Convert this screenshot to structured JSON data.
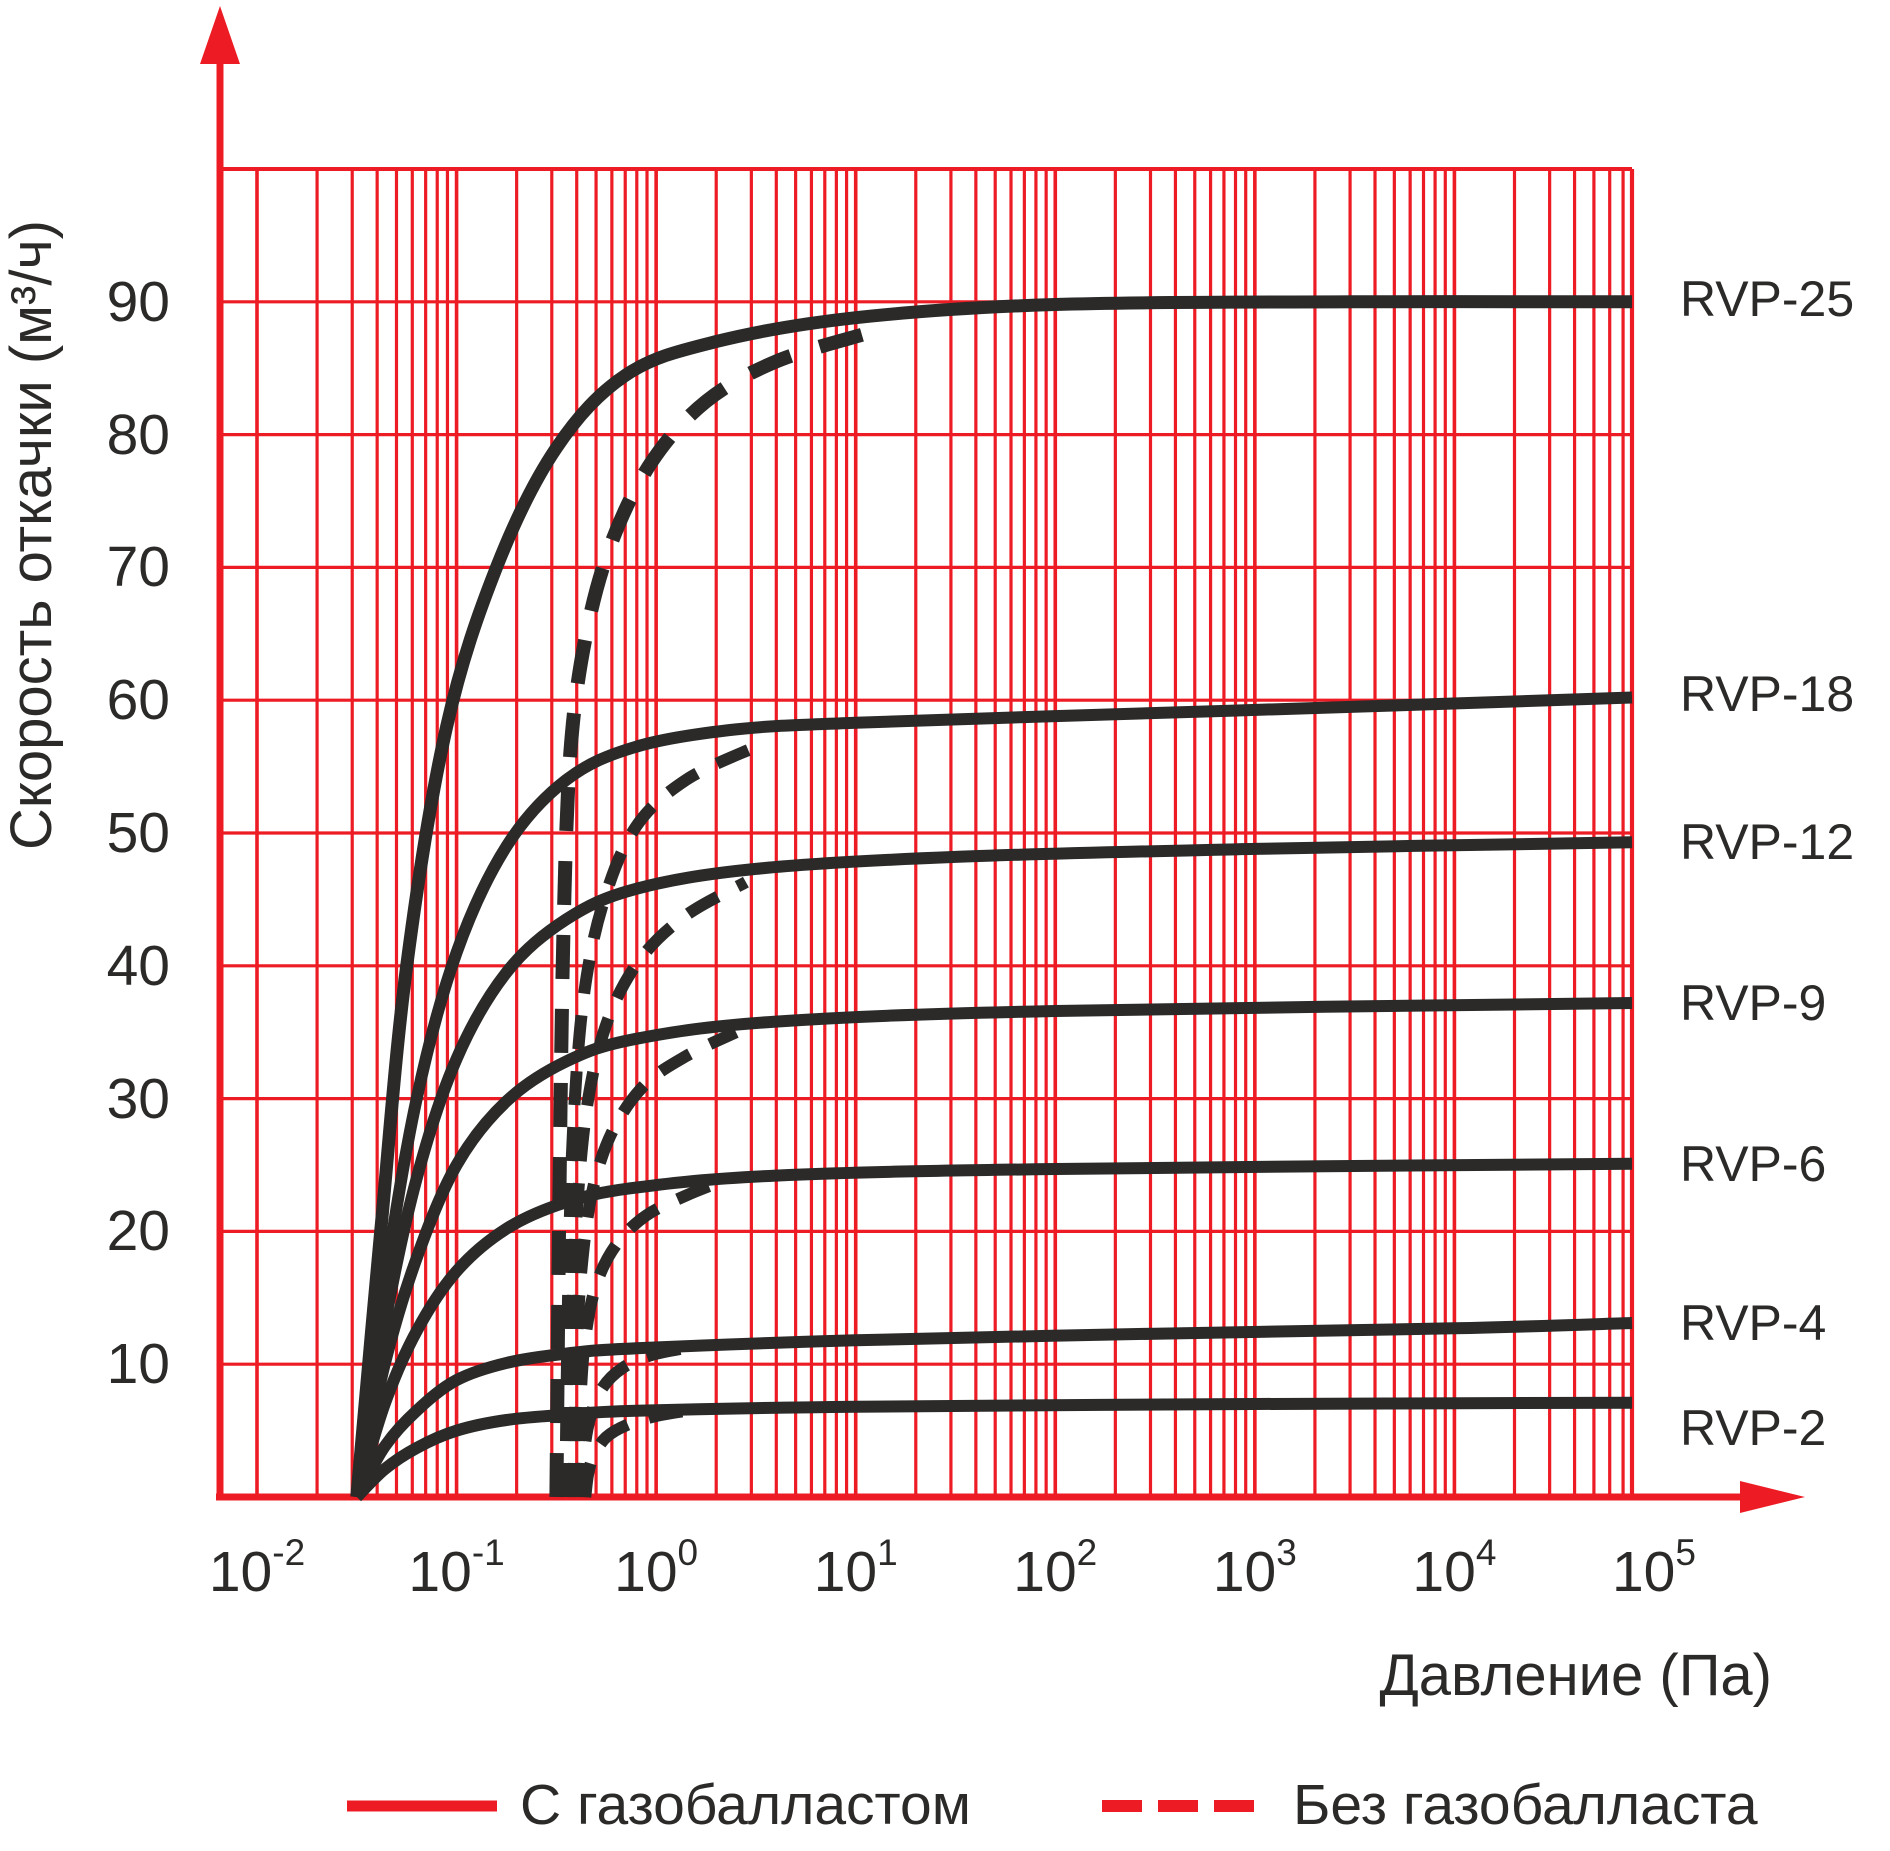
{
  "chart_data": {
    "type": "line",
    "title": "",
    "xlabel": "Давление (Па)",
    "ylabel": "Скорость откачки (м³/ч)",
    "x_scale": "log10",
    "x_ticks": [
      {
        "base": "10",
        "exp": "-2"
      },
      {
        "base": "10",
        "exp": "-1"
      },
      {
        "base": "10",
        "exp": "0"
      },
      {
        "base": "10",
        "exp": "1"
      },
      {
        "base": "10",
        "exp": "2"
      },
      {
        "base": "10",
        "exp": "3"
      },
      {
        "base": "10",
        "exp": "4"
      },
      {
        "base": "10",
        "exp": "5"
      }
    ],
    "y_ticks": [
      10,
      20,
      30,
      40,
      50,
      60,
      70,
      80,
      90
    ],
    "ylim": [
      0,
      100
    ],
    "grid": true,
    "legend_position": "bottom",
    "colors": {
      "grid": "#ed1c24",
      "axis": "#ed1c24",
      "curve": "#2b2a29",
      "text": "#2b2a29"
    },
    "legend": [
      {
        "label": "С газобалластом",
        "style": "solid"
      },
      {
        "label": "Без газобалласта",
        "style": "dashed"
      }
    ],
    "series": [
      {
        "label": "RVP-25",
        "plateau_m3h": 90,
        "label_v": 90.2,
        "solid": [
          [
            -1.5,
            0
          ],
          [
            -1.38,
            20
          ],
          [
            -1.25,
            40
          ],
          [
            -1.05,
            58
          ],
          [
            -0.8,
            70
          ],
          [
            -0.5,
            79
          ],
          [
            -0.15,
            84.5
          ],
          [
            0.3,
            87
          ],
          [
            1,
            88.8
          ],
          [
            2,
            89.8
          ],
          [
            3.5,
            90
          ],
          [
            4.89,
            90
          ]
        ],
        "dashed": [
          [
            -0.5,
            0
          ],
          [
            -0.485,
            22
          ],
          [
            -0.465,
            42
          ],
          [
            -0.43,
            56
          ],
          [
            -0.35,
            65
          ],
          [
            -0.22,
            72
          ],
          [
            -0.02,
            78
          ],
          [
            0.25,
            82.5
          ],
          [
            0.6,
            85.5
          ],
          [
            1.05,
            87.6
          ]
        ]
      },
      {
        "label": "RVP-18",
        "plateau_m3h": 60,
        "label_v": 60.5,
        "solid": [
          [
            -1.5,
            0
          ],
          [
            -1.36,
            16
          ],
          [
            -1.2,
            30
          ],
          [
            -1.0,
            41
          ],
          [
            -0.75,
            49
          ],
          [
            -0.45,
            54
          ],
          [
            -0.1,
            56.5
          ],
          [
            0.4,
            57.8
          ],
          [
            1,
            58.3
          ],
          [
            2,
            58.8
          ],
          [
            3.5,
            59.5
          ],
          [
            4.89,
            60.2
          ]
        ],
        "dashed": [
          [
            -0.455,
            0
          ],
          [
            -0.44,
            16
          ],
          [
            -0.415,
            28
          ],
          [
            -0.36,
            38
          ],
          [
            -0.26,
            45
          ],
          [
            -0.1,
            50.5
          ],
          [
            0.15,
            54
          ],
          [
            0.5,
            56.5
          ]
        ]
      },
      {
        "label": "RVP-12",
        "plateau_m3h": 49,
        "label_v": 49.3,
        "solid": [
          [
            -1.5,
            0
          ],
          [
            -1.36,
            13
          ],
          [
            -1.2,
            24
          ],
          [
            -1.0,
            33
          ],
          [
            -0.75,
            39.5
          ],
          [
            -0.45,
            43.5
          ],
          [
            -0.1,
            45.8
          ],
          [
            0.5,
            47.3
          ],
          [
            1.5,
            48.2
          ],
          [
            3,
            48.8
          ],
          [
            4.89,
            49.3
          ]
        ],
        "dashed": [
          [
            -0.435,
            0
          ],
          [
            -0.42,
            13
          ],
          [
            -0.395,
            22
          ],
          [
            -0.34,
            30
          ],
          [
            -0.24,
            36
          ],
          [
            -0.08,
            40.5
          ],
          [
            0.15,
            43.8
          ],
          [
            0.45,
            46.3
          ]
        ]
      },
      {
        "label": "RVP-9",
        "plateau_m3h": 37,
        "label_v": 37.2,
        "solid": [
          [
            -1.5,
            0
          ],
          [
            -1.36,
            10
          ],
          [
            -1.2,
            18
          ],
          [
            -1.0,
            25
          ],
          [
            -0.75,
            29.8
          ],
          [
            -0.45,
            32.8
          ],
          [
            -0.1,
            34.5
          ],
          [
            0.6,
            35.8
          ],
          [
            2,
            36.6
          ],
          [
            4.89,
            37.2
          ]
        ],
        "dashed": [
          [
            -0.415,
            0
          ],
          [
            -0.4,
            10
          ],
          [
            -0.375,
            17
          ],
          [
            -0.32,
            23
          ],
          [
            -0.22,
            27.5
          ],
          [
            -0.06,
            31
          ],
          [
            0.15,
            33.2
          ],
          [
            0.4,
            35
          ]
        ]
      },
      {
        "label": "RVP-6",
        "plateau_m3h": 25,
        "label_v": 25.1,
        "solid": [
          [
            -1.5,
            0
          ],
          [
            -1.36,
            7
          ],
          [
            -1.2,
            12.5
          ],
          [
            -1.0,
            17
          ],
          [
            -0.75,
            20.2
          ],
          [
            -0.45,
            22.2
          ],
          [
            -0.1,
            23.3
          ],
          [
            0.6,
            24.2
          ],
          [
            2,
            24.7
          ],
          [
            4.89,
            25.1
          ]
        ],
        "dashed": [
          [
            -0.395,
            0
          ],
          [
            -0.38,
            7
          ],
          [
            -0.355,
            12
          ],
          [
            -0.3,
            16
          ],
          [
            -0.2,
            19
          ],
          [
            -0.05,
            21.2
          ],
          [
            0.15,
            22.7
          ],
          [
            0.35,
            23.9
          ]
        ]
      },
      {
        "label": "RVP-4",
        "plateau_m3h": 13,
        "label_v": 13.1,
        "solid": [
          [
            -1.5,
            0
          ],
          [
            -1.36,
            3.8
          ],
          [
            -1.2,
            6.5
          ],
          [
            -1.0,
            8.8
          ],
          [
            -0.75,
            10.1
          ],
          [
            -0.45,
            10.8
          ],
          [
            -0.1,
            11.2
          ],
          [
            1,
            11.8
          ],
          [
            2.5,
            12.3
          ],
          [
            4,
            12.7
          ],
          [
            4.89,
            13.1
          ]
        ],
        "dashed": [
          [
            -0.375,
            0
          ],
          [
            -0.36,
            3.5
          ],
          [
            -0.33,
            6
          ],
          [
            -0.27,
            8.2
          ],
          [
            -0.17,
            9.7
          ],
          [
            -0.02,
            10.7
          ],
          [
            0.22,
            11.4
          ]
        ]
      },
      {
        "label": "RVP-2",
        "plateau_m3h": 7,
        "label_v": 5.2,
        "solid": [
          [
            -1.5,
            0
          ],
          [
            -1.36,
            2.1
          ],
          [
            -1.2,
            3.7
          ],
          [
            -1.0,
            5.0
          ],
          [
            -0.75,
            5.8
          ],
          [
            -0.45,
            6.2
          ],
          [
            -0.1,
            6.5
          ],
          [
            1,
            6.8
          ],
          [
            3,
            7.0
          ],
          [
            4.89,
            7.1
          ]
        ],
        "dashed": [
          [
            -0.355,
            0
          ],
          [
            -0.34,
            1.8
          ],
          [
            -0.31,
            3.2
          ],
          [
            -0.25,
            4.5
          ],
          [
            -0.15,
            5.4
          ],
          [
            0.0,
            6.1
          ],
          [
            0.2,
            6.6
          ]
        ]
      }
    ]
  }
}
